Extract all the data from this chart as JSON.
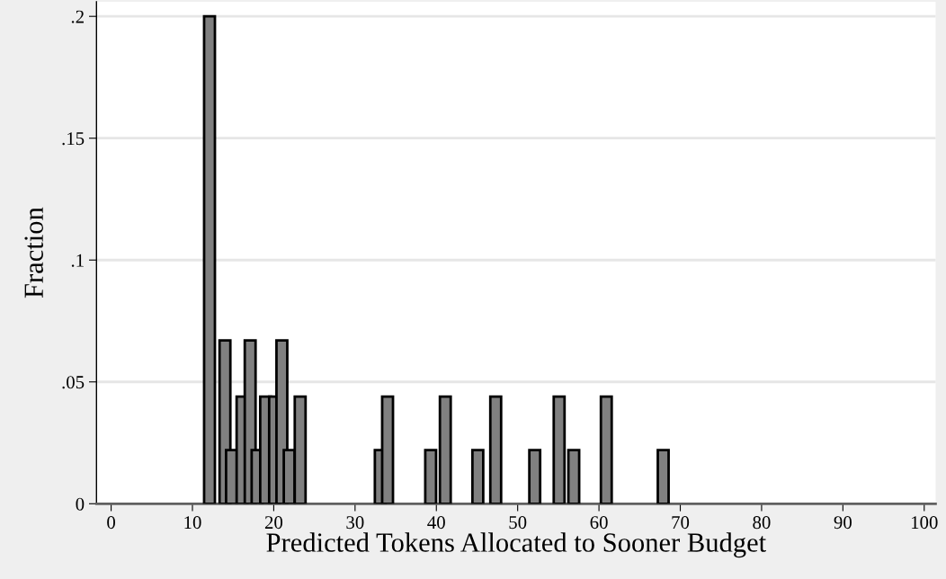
{
  "chart_data": {
    "type": "bar",
    "xlabel": "Predicted Tokens Allocated to Sooner Budget",
    "ylabel": "Fraction",
    "x": [
      12.1,
      14.0,
      14.8,
      16.1,
      17.1,
      17.95,
      19.0,
      20.1,
      21.0,
      21.9,
      23.25,
      33.1,
      34.0,
      39.3,
      41.1,
      45.1,
      47.3,
      52.1,
      55.1,
      56.9,
      60.9,
      67.9
    ],
    "values": [
      0.2,
      0.067,
      0.022,
      0.044,
      0.067,
      0.022,
      0.044,
      0.044,
      0.067,
      0.022,
      0.044,
      0.022,
      0.044,
      0.022,
      0.044,
      0.022,
      0.044,
      0.022,
      0.044,
      0.022,
      0.044,
      0.022
    ],
    "color": "#808080",
    "xlim": [
      -1.8,
      101.4
    ],
    "xticks": [
      0,
      10,
      20,
      30,
      40,
      50,
      60,
      70,
      80,
      90,
      100
    ],
    "ylim": [
      0,
      0.206
    ],
    "yticks": [
      {
        "value": 0,
        "label": "0"
      },
      {
        "value": 0.05,
        "label": ".05"
      },
      {
        "value": 0.1,
        "label": ".1"
      },
      {
        "value": 0.15,
        "label": ".15"
      },
      {
        "value": 0.2,
        "label": ".2"
      }
    ],
    "grid": "y"
  }
}
